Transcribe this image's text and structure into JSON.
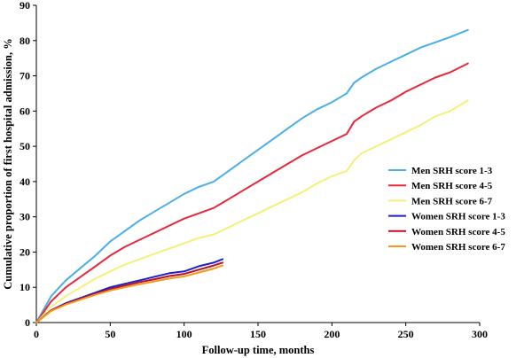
{
  "chart_data": {
    "type": "line",
    "title": "",
    "xlabel": "Follow-up time, months",
    "ylabel": "Cumulative proportion of first hospital admission, %",
    "xlim": [
      0,
      300
    ],
    "ylim": [
      0,
      90
    ],
    "x_ticks": [
      0,
      50,
      100,
      150,
      200,
      250,
      300
    ],
    "y_ticks": [
      0,
      10,
      20,
      30,
      40,
      50,
      60,
      70,
      80,
      90
    ],
    "grid": false,
    "legend_position": "right",
    "series": [
      {
        "name": "Men SRH score 1-3",
        "color": "#4aaee8",
        "x": [
          0,
          10,
          20,
          30,
          40,
          50,
          60,
          70,
          80,
          90,
          100,
          110,
          120,
          130,
          140,
          150,
          160,
          170,
          180,
          190,
          200,
          210,
          215,
          220,
          230,
          240,
          250,
          260,
          270,
          280,
          292
        ],
        "y": [
          0,
          7.5,
          12,
          15.5,
          19,
          23,
          26,
          29,
          31.5,
          34,
          36.5,
          38.5,
          40,
          43,
          46,
          49,
          52,
          55,
          58,
          60.5,
          62.5,
          65,
          68,
          69.5,
          72,
          74,
          76,
          78,
          79.5,
          81,
          83
        ]
      },
      {
        "name": "Men SRH score 4-5",
        "color": "#e8283a",
        "x": [
          0,
          10,
          20,
          30,
          40,
          50,
          60,
          70,
          80,
          90,
          100,
          110,
          120,
          130,
          140,
          150,
          160,
          170,
          180,
          190,
          200,
          210,
          215,
          220,
          230,
          240,
          250,
          260,
          270,
          280,
          292
        ],
        "y": [
          0,
          6,
          10,
          13,
          16,
          19,
          21.5,
          23.5,
          25.5,
          27.5,
          29.5,
          31,
          32.5,
          35,
          37.5,
          40,
          42.5,
          45,
          47.5,
          49.5,
          51.5,
          53.5,
          57,
          58.5,
          61,
          63,
          65.5,
          67.5,
          69.5,
          71,
          73.5
        ]
      },
      {
        "name": "Men SRH score 6-7",
        "color": "#f5f07a",
        "x": [
          0,
          10,
          20,
          30,
          40,
          50,
          60,
          70,
          80,
          90,
          100,
          110,
          120,
          130,
          140,
          150,
          160,
          170,
          180,
          190,
          200,
          210,
          215,
          220,
          230,
          240,
          250,
          260,
          270,
          280,
          292
        ],
        "y": [
          0,
          4.5,
          7.5,
          10,
          12.5,
          14.5,
          16.5,
          18,
          19.5,
          21,
          22.5,
          24,
          25,
          27,
          29,
          31,
          33,
          35,
          37,
          39.5,
          41.5,
          43,
          46,
          48,
          50,
          52,
          54,
          56,
          58.5,
          60,
          63
        ]
      },
      {
        "name": "Women SRH score 1-3",
        "color": "#1a22cc",
        "x": [
          0,
          10,
          20,
          30,
          40,
          50,
          60,
          70,
          80,
          90,
          100,
          110,
          120,
          126
        ],
        "y": [
          0,
          3.5,
          5.5,
          7,
          8.5,
          10,
          11,
          12,
          13,
          14,
          14.5,
          16,
          17,
          18
        ]
      },
      {
        "name": "Women SRH score 4-5",
        "color": "#b8102a",
        "x": [
          0,
          10,
          20,
          30,
          40,
          50,
          60,
          70,
          80,
          90,
          100,
          110,
          120,
          126
        ],
        "y": [
          0,
          3.4,
          5.3,
          6.8,
          8.2,
          9.5,
          10.5,
          11.5,
          12.3,
          13.2,
          13.8,
          15,
          16.2,
          17
        ]
      },
      {
        "name": "Women SRH score 6-7",
        "color": "#f39a1c",
        "x": [
          0,
          10,
          20,
          30,
          40,
          50,
          60,
          70,
          80,
          90,
          100,
          110,
          120,
          126
        ],
        "y": [
          0,
          3.3,
          5.1,
          6.5,
          7.9,
          9.1,
          10,
          10.9,
          11.7,
          12.5,
          13.1,
          14.2,
          15.3,
          16.2
        ]
      }
    ]
  }
}
